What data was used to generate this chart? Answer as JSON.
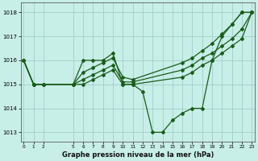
{
  "title": "Graphe pression niveau de la mer (hPa)",
  "background_color": "#c8eee8",
  "line_color": "#1a5c1a",
  "grid_color": "#a0d0c8",
  "series1_x": [
    0,
    1,
    2,
    5,
    6,
    7,
    8,
    9,
    10,
    11,
    12,
    13,
    14,
    15,
    16,
    17,
    18,
    19,
    20,
    21,
    22,
    23
  ],
  "series1_y": [
    1016.0,
    1015.0,
    1015.0,
    1015.0,
    1016.0,
    1016.0,
    1016.0,
    1016.3,
    1015.0,
    1015.0,
    1014.7,
    1013.0,
    1013.0,
    1013.5,
    1013.8,
    1014.0,
    1014.0,
    1016.0,
    1017.0,
    1017.5,
    1018.0,
    1018.0
  ],
  "series2_x": [
    0,
    1,
    2,
    5,
    6,
    7,
    8,
    9,
    10,
    11,
    16,
    17,
    18,
    19,
    20,
    21,
    22,
    23
  ],
  "series2_y": [
    1016.0,
    1015.0,
    1015.0,
    1015.0,
    1015.5,
    1015.7,
    1015.9,
    1016.1,
    1015.3,
    1015.2,
    1015.9,
    1016.1,
    1016.4,
    1016.7,
    1017.1,
    1017.5,
    1018.0,
    1018.0
  ],
  "series3_x": [
    0,
    1,
    2,
    5,
    6,
    7,
    8,
    9,
    10,
    11,
    16,
    17,
    18,
    19,
    20,
    21,
    22,
    23
  ],
  "series3_y": [
    1016.0,
    1015.0,
    1015.0,
    1015.0,
    1015.2,
    1015.4,
    1015.6,
    1015.8,
    1015.1,
    1015.1,
    1015.6,
    1015.8,
    1016.1,
    1016.3,
    1016.6,
    1016.9,
    1017.3,
    1018.0
  ],
  "series4_x": [
    0,
    1,
    2,
    5,
    6,
    7,
    8,
    9,
    10,
    11,
    16,
    17,
    18,
    19,
    20,
    21,
    22,
    23
  ],
  "series4_y": [
    1016.0,
    1015.0,
    1015.0,
    1015.0,
    1015.0,
    1015.2,
    1015.4,
    1015.6,
    1015.0,
    1015.0,
    1015.3,
    1015.5,
    1015.8,
    1016.0,
    1016.3,
    1016.6,
    1016.9,
    1018.0
  ],
  "yticks": [
    1013,
    1014,
    1015,
    1016,
    1017,
    1018
  ],
  "xticks": [
    0,
    1,
    2,
    5,
    6,
    7,
    8,
    9,
    10,
    11,
    12,
    13,
    14,
    15,
    16,
    17,
    18,
    19,
    20,
    21,
    22,
    23
  ],
  "ylim": [
    1012.6,
    1018.4
  ],
  "xlim": [
    -0.3,
    23.3
  ],
  "figsize": [
    3.2,
    2.0
  ],
  "dpi": 100
}
